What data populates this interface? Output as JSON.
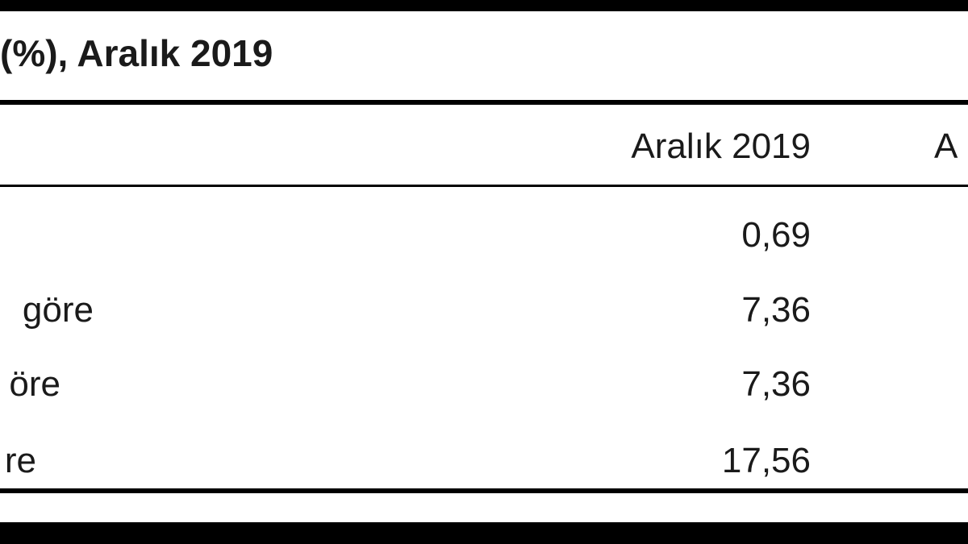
{
  "table": {
    "title": "(%), Aralık 2019",
    "columns": [
      "Aralık 2019",
      "A"
    ],
    "rows": [
      {
        "value": "0,69"
      },
      {
        "label": "göre",
        "value": "7,36"
      },
      {
        "label": "öre",
        "value": "7,36"
      },
      {
        "label": "re",
        "value": "17,56"
      }
    ]
  }
}
